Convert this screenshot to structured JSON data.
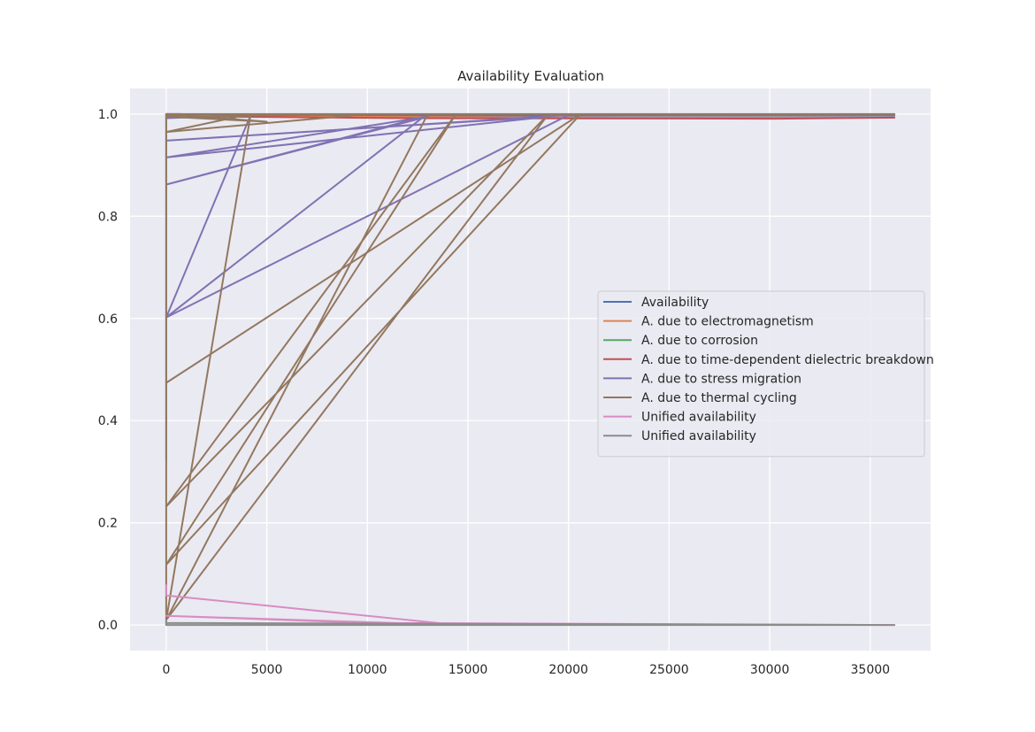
{
  "chart_data": {
    "type": "line",
    "title": "Availability Evaluation",
    "xlabel": "",
    "ylabel": "",
    "xlim": [
      -1800,
      38000
    ],
    "ylim": [
      -0.05,
      1.05
    ],
    "x_ticks": [
      0,
      5000,
      10000,
      15000,
      20000,
      25000,
      30000,
      35000
    ],
    "x_tick_labels": [
      "0",
      "5000",
      "10000",
      "15000",
      "20000",
      "25000",
      "30000",
      "35000"
    ],
    "y_ticks": [
      0.0,
      0.2,
      0.4,
      0.6,
      0.8,
      1.0
    ],
    "y_tick_labels": [
      "0.0",
      "0.2",
      "0.4",
      "0.6",
      "0.8",
      "1.0"
    ],
    "grid": true,
    "legend_position": "center-right",
    "colors": {
      "background": "#eaeaf2",
      "grid": "#ffffff"
    },
    "series": [
      {
        "name": "Availability",
        "color": "#4c72b0",
        "x": [
          0,
          30,
          2500,
          12000,
          36200
        ],
        "y": [
          1.0,
          0.997,
          0.995,
          0.997,
          0.997
        ]
      },
      {
        "name": "A. due to electromagnetism",
        "color": "#dd8452",
        "x": [
          0,
          100,
          22600,
          36200
        ],
        "y": [
          1.0,
          0.996,
          0.993,
          0.993
        ]
      },
      {
        "name": "A. due to corrosion",
        "color": "#55a868",
        "x": [
          0,
          200,
          36200
        ],
        "y": [
          1.0,
          0.999,
          0.999
        ]
      },
      {
        "name": "A. due to time-dependent dielectric breakdown",
        "color": "#c44e52",
        "x": [
          0,
          50,
          12000,
          30300,
          36200
        ],
        "y": [
          1.0,
          0.996,
          0.992,
          0.991,
          0.993
        ]
      },
      {
        "name": "A. due to stress migration",
        "color": "#8172b3",
        "x": [
          0,
          0,
          0,
          12800,
          0,
          13000,
          0,
          19000,
          0,
          20000,
          0,
          4200,
          0,
          700,
          0,
          36200
        ],
        "y": [
          0.322,
          1.0,
          0.602,
          0.995,
          0.862,
          0.995,
          0.915,
          0.995,
          0.948,
          0.998,
          0.602,
          0.998,
          0.992,
          1.0,
          1.0,
          0.998
        ]
      },
      {
        "name": "A. due to thermal cycling",
        "color": "#937860",
        "x": [
          0,
          0,
          0,
          20600,
          0,
          14400,
          0,
          19000,
          0,
          13000,
          0,
          4200,
          0,
          10000,
          0,
          5000,
          0,
          36200
        ],
        "y": [
          0.0,
          1.0,
          0.474,
          1.0,
          0.118,
          1.0,
          0.232,
          1.0,
          0.01,
          1.0,
          0.01,
          1.0,
          0.965,
          1.0,
          0.995,
          0.985,
          1.0,
          1.0
        ]
      },
      {
        "name": "Unified availability",
        "color": "#da8bc3",
        "x": [
          0,
          0,
          14500,
          0,
          10000,
          36200
        ],
        "y": [
          0.078,
          0.058,
          0.0,
          0.018,
          0.004,
          0.0
        ]
      },
      {
        "name": "Unified availability",
        "color": "#8c8c8c",
        "x": [
          0,
          0,
          36200,
          0,
          30000
        ],
        "y": [
          0.01,
          0.0,
          0.0,
          0.004,
          0.0
        ]
      }
    ]
  }
}
